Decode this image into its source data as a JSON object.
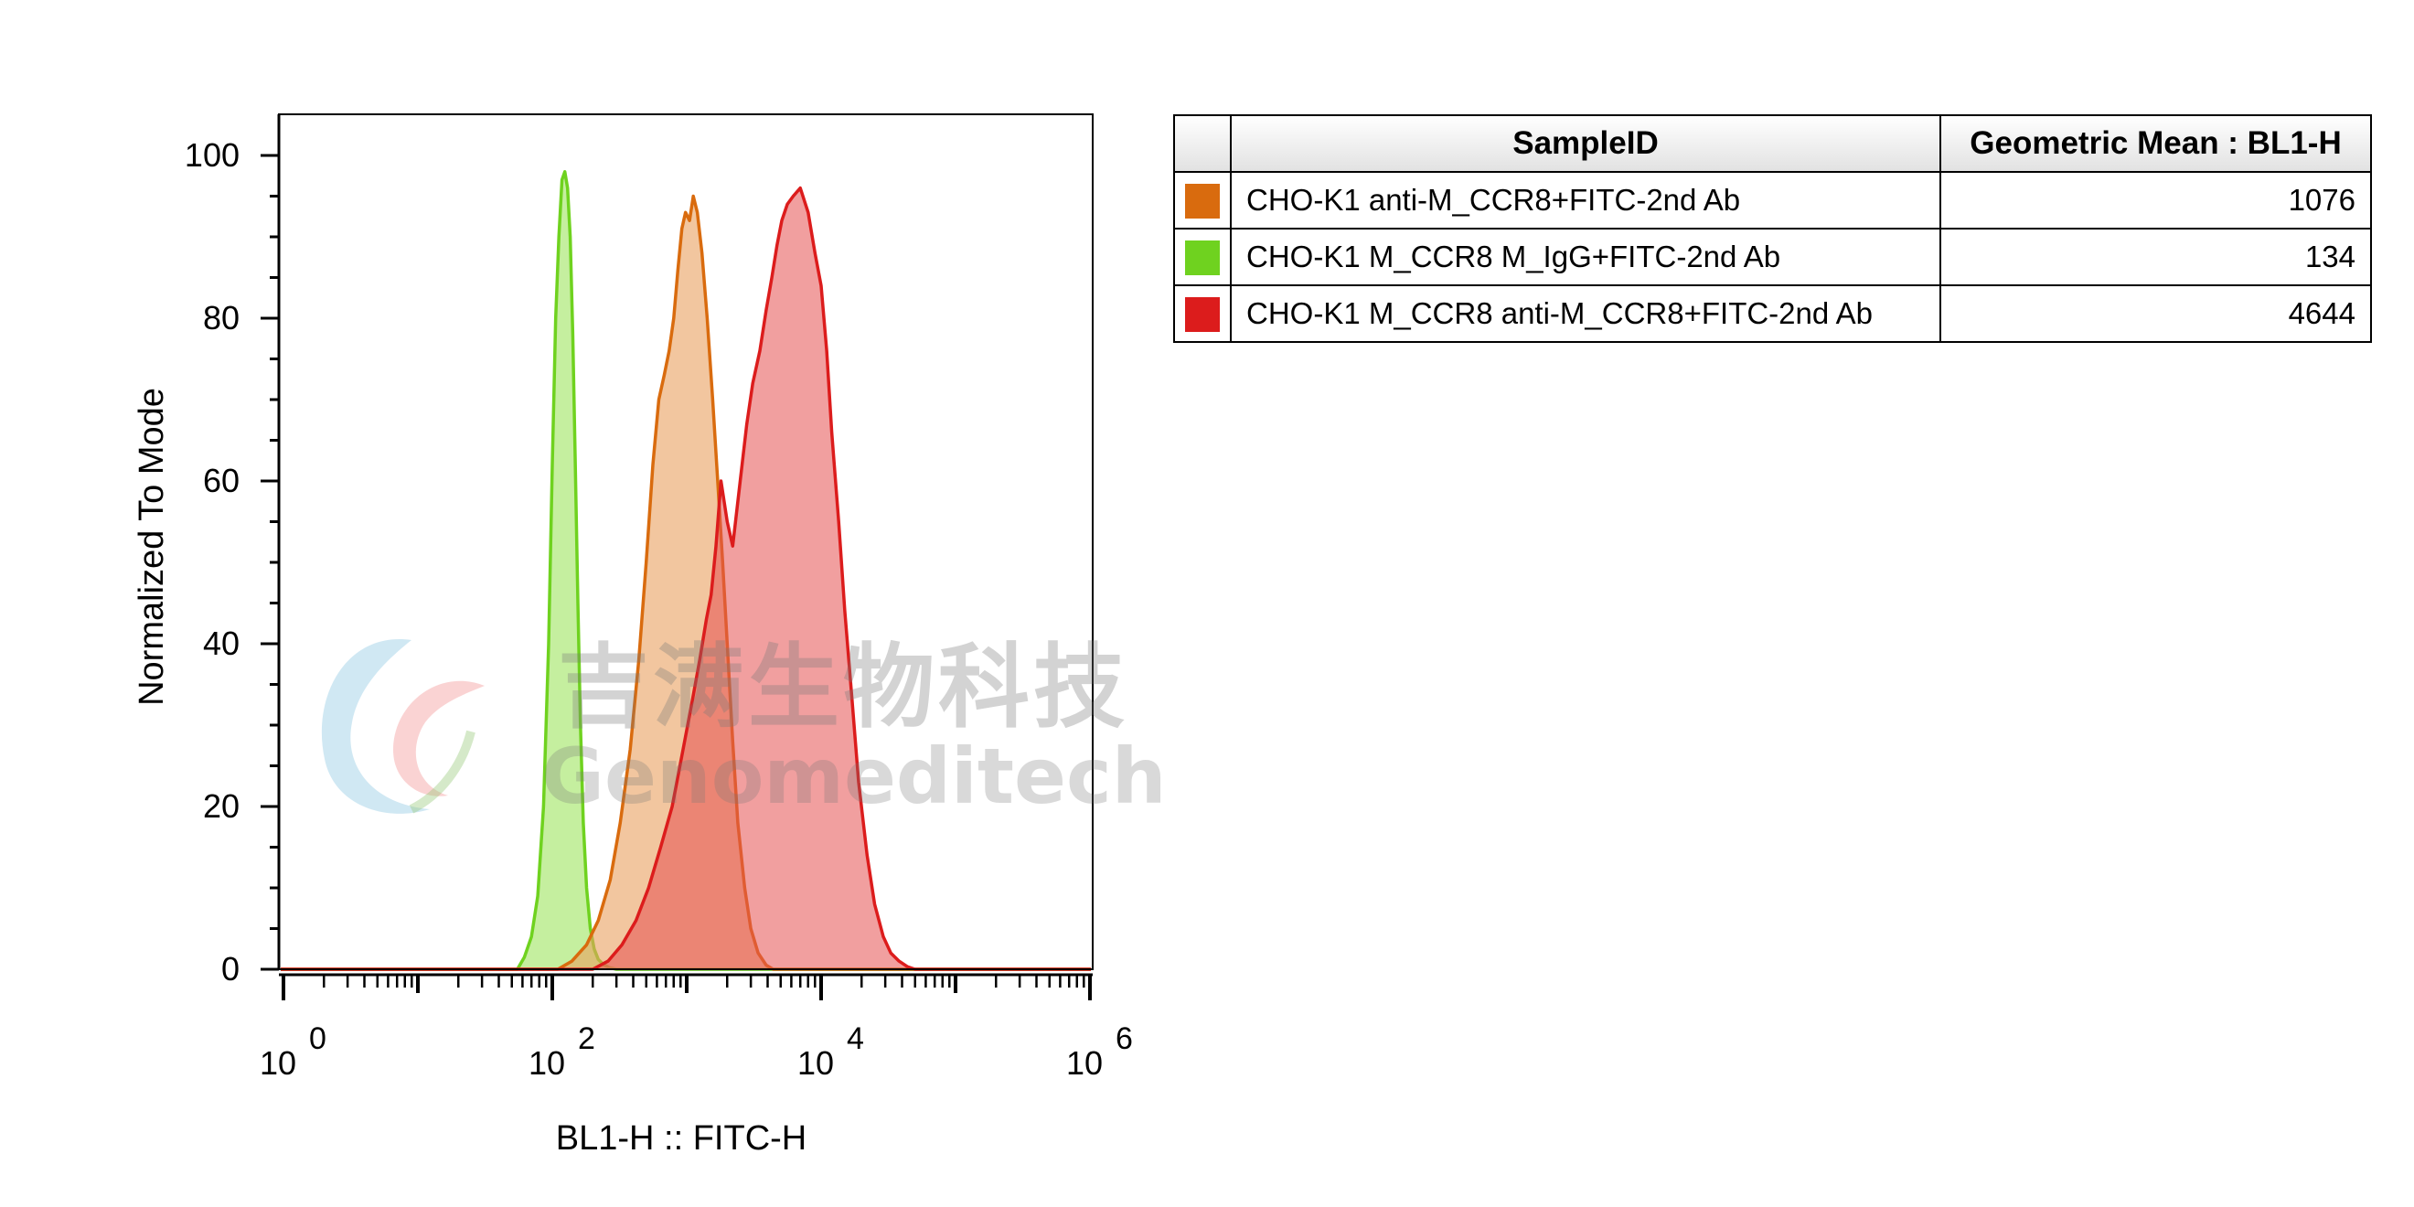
{
  "chart_data": {
    "type": "area",
    "xscale": "log",
    "xlim": [
      1,
      1000000
    ],
    "ylim": [
      0,
      100
    ],
    "xlabel": "BL1-H :: FITC-H",
    "ylabel": "Normalized To Mode",
    "xticks": [
      {
        "base": "10",
        "exp": "0",
        "value": 1
      },
      {
        "base": "10",
        "exp": "2",
        "value": 100
      },
      {
        "base": "10",
        "exp": "4",
        "value": 10000
      },
      {
        "base": "10",
        "exp": "6",
        "value": 1000000
      }
    ],
    "yticks": [
      "0",
      "20",
      "40",
      "60",
      "80",
      "100"
    ],
    "series": [
      {
        "name": "CHO-K1 M_CCR8 M_IgG+FITC-2nd Ab",
        "geometric_mean": "134",
        "color": "#6fd21f",
        "fill": "rgba(150,225,80,0.55)",
        "x": [
          55,
          62,
          70,
          78,
          86,
          94,
          100,
          106,
          112,
          118,
          124,
          130,
          136,
          142,
          148,
          155,
          162,
          170,
          180,
          192,
          205,
          220,
          240,
          265,
          300
        ],
        "y": [
          0,
          1.5,
          4,
          9,
          20,
          40,
          62,
          80,
          90,
          97,
          98,
          96,
          90,
          78,
          63,
          45,
          30,
          18,
          10,
          5,
          2.5,
          1.2,
          0.6,
          0.2,
          0
        ]
      },
      {
        "name": "CHO-K1 anti-M_CCR8+FITC-2nd Ab",
        "geometric_mean": "1076",
        "color": "#d96b0e",
        "fill": "rgba(233,160,95,0.6)",
        "x": [
          110,
          140,
          180,
          220,
          270,
          320,
          380,
          440,
          500,
          560,
          620,
          680,
          740,
          800,
          860,
          920,
          980,
          1050,
          1120,
          1200,
          1300,
          1420,
          1560,
          1700,
          1850,
          2000,
          2200,
          2400,
          2700,
          3000,
          3400,
          3900,
          4400
        ],
        "y": [
          0,
          1,
          3,
          6,
          11,
          18,
          27,
          38,
          50,
          62,
          70,
          73,
          76,
          80,
          86,
          91,
          93,
          92,
          95,
          93,
          88,
          80,
          70,
          60,
          50,
          40,
          28,
          18,
          10,
          5,
          2,
          0.5,
          0
        ]
      },
      {
        "name": "CHO-K1 M_CCR8 anti-M_CCR8+FITC-2nd Ab",
        "geometric_mean": "4644",
        "color": "#dc1c1c",
        "fill": "rgba(230,80,80,0.55)",
        "x": [
          200,
          260,
          330,
          420,
          520,
          640,
          780,
          940,
          1100,
          1250,
          1400,
          1520,
          1650,
          1800,
          2000,
          2200,
          2500,
          2800,
          3100,
          3500,
          3900,
          4300,
          4700,
          5100,
          5600,
          6200,
          7000,
          8000,
          9000,
          10000,
          11000,
          12000,
          13500,
          15000,
          17000,
          19000,
          22000,
          25000,
          29000,
          33000,
          38000,
          44000,
          50000
        ],
        "y": [
          0,
          1,
          3,
          6,
          10,
          15,
          20,
          27,
          33,
          38,
          43,
          46,
          52,
          60,
          55,
          52,
          60,
          67,
          72,
          76,
          81,
          85,
          89,
          92,
          94,
          95,
          96,
          93,
          88,
          84,
          76,
          66,
          55,
          44,
          33,
          23,
          14,
          8,
          4,
          2,
          1,
          0.3,
          0
        ]
      }
    ]
  },
  "legend": {
    "headers": {
      "swatch": "",
      "sample": "SampleID",
      "value": "Geometric Mean : BL1-H"
    },
    "rows": [
      {
        "name": "CHO-K1 anti-M_CCR8+FITC-2nd Ab",
        "value": "1076",
        "color": "#d96b0e"
      },
      {
        "name": "CHO-K1 M_CCR8 M_IgG+FITC-2nd Ab",
        "value": "134",
        "color": "#6fd21f"
      },
      {
        "name": "CHO-K1 M_CCR8 anti-M_CCR8+FITC-2nd Ab",
        "value": "4644",
        "color": "#dc1c1c"
      }
    ]
  },
  "watermark": {
    "cn": "吉满生物科技",
    "en": "Genomeditech"
  }
}
